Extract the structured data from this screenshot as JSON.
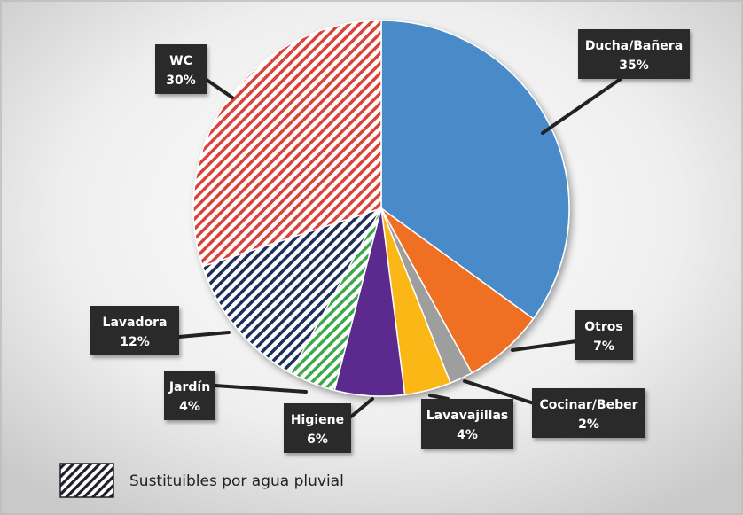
{
  "chart_data": {
    "type": "pie",
    "title": "",
    "slices": [
      {
        "name": "Ducha/Bañera",
        "value": 35,
        "label": "35%",
        "color": "#4a8ac9",
        "pattern": "solid"
      },
      {
        "name": "Otros",
        "value": 7,
        "label": "7%",
        "color": "#ef7024",
        "pattern": "solid"
      },
      {
        "name": "Cocinar/Beber",
        "value": 2,
        "label": "2%",
        "color": "#9e9e9e",
        "pattern": "solid"
      },
      {
        "name": "Lavavajillas",
        "value": 4,
        "label": "4%",
        "color": "#fbb714",
        "pattern": "solid"
      },
      {
        "name": "Higiene",
        "value": 6,
        "label": "6%",
        "color": "#5c2a8e",
        "pattern": "solid"
      },
      {
        "name": "Jardín",
        "value": 4,
        "label": "4%",
        "color": "#3aa84a",
        "pattern": "hatch"
      },
      {
        "name": "Lavadora",
        "value": 12,
        "label": "12%",
        "color": "#1f2d5c",
        "pattern": "hatch"
      },
      {
        "name": "WC",
        "value": 30,
        "label": "30%",
        "color": "#d9433a",
        "pattern": "hatch"
      }
    ],
    "legend": {
      "text": "Sustituibles por agua pluvial",
      "placement": "bottom-left",
      "swatch_color": "#1f1f2a"
    }
  }
}
